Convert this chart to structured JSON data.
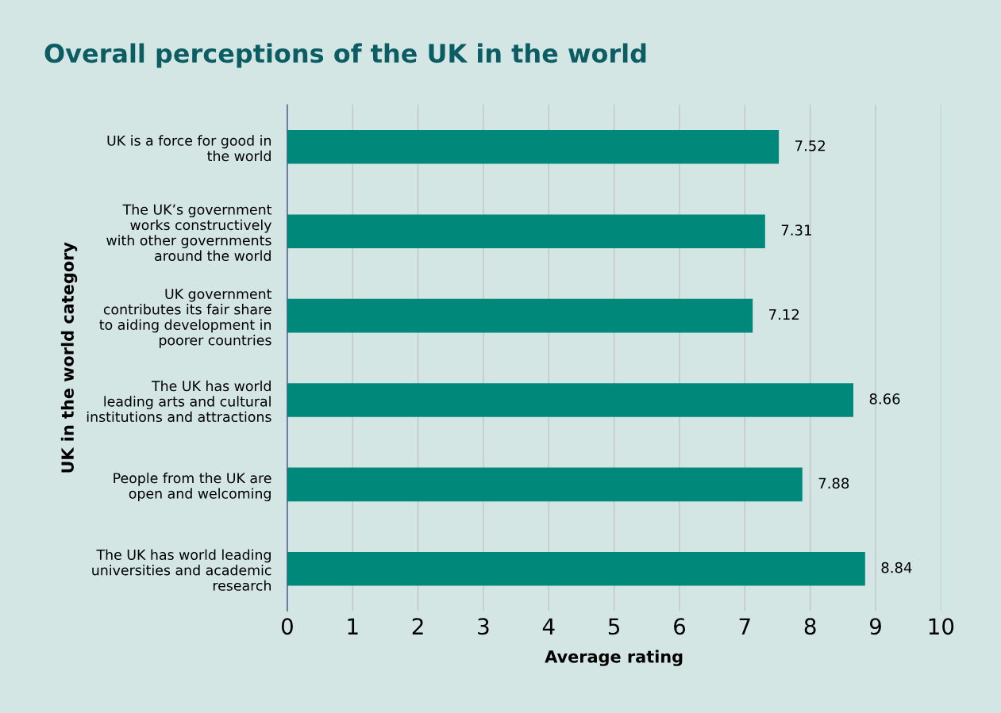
{
  "chart_data": {
    "type": "bar",
    "orientation": "horizontal",
    "title": "Overall perceptions of the UK in the world",
    "xlabel": "Average rating",
    "ylabel": "UK in the world category",
    "categories": [
      "UK is a force for good in\nthe world",
      "The UK’s government\nworks constructively\nwith other governments\naround the world",
      "UK government\ncontributes its fair share\nto aiding development in\npoorer countries",
      "The UK has world\nleading arts and cultural\ninstitutions and attractions",
      "People from the UK are\nopen and welcoming",
      "The UK has world leading\nuniversities and academic\nresearch"
    ],
    "values": [
      7.52,
      7.31,
      7.12,
      8.66,
      7.88,
      8.84
    ],
    "color": "#00897a",
    "xlim": [
      0,
      10
    ],
    "xticks": [
      0,
      1,
      2,
      3,
      4,
      5,
      6,
      7,
      8,
      9,
      10
    ],
    "grid": "x",
    "data_labels": true
  }
}
